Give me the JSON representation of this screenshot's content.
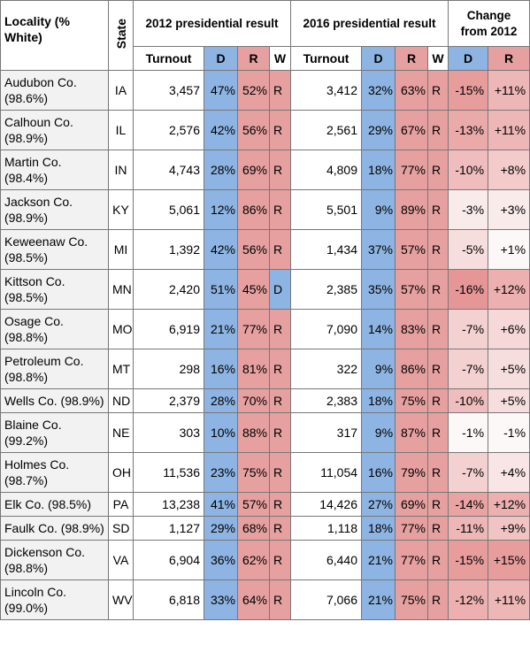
{
  "header": {
    "locality": "Locality (% White)",
    "state": "State",
    "group_2012": "2012 presidential result",
    "group_2016": "2016 presidential result",
    "group_change": "Change from 2012",
    "sub": [
      "Turnout",
      "D",
      "R",
      "W",
      "Turnout",
      "D",
      "R",
      "W",
      "D",
      "R"
    ]
  },
  "table": {
    "rows": [
      [
        "Audubon Co. (98.6%)",
        "IA",
        "3,457",
        "47%",
        "52%",
        "R",
        "3,412",
        "32%",
        "63%",
        "R",
        "-15%",
        "+11%"
      ],
      [
        "Calhoun Co. (98.9%)",
        "IL",
        "2,576",
        "42%",
        "56%",
        "R",
        "2,561",
        "29%",
        "67%",
        "R",
        "-13%",
        "+11%"
      ],
      [
        "Martin Co. (98.4%)",
        "IN",
        "4,743",
        "28%",
        "69%",
        "R",
        "4,809",
        "18%",
        "77%",
        "R",
        "-10%",
        "+8%"
      ],
      [
        "Jackson Co. (98.9%)",
        "KY",
        "5,061",
        "12%",
        "86%",
        "R",
        "5,501",
        "9%",
        "89%",
        "R",
        "-3%",
        "+3%"
      ],
      [
        "Keweenaw Co. (98.5%)",
        "MI",
        "1,392",
        "42%",
        "56%",
        "R",
        "1,434",
        "37%",
        "57%",
        "R",
        "-5%",
        "+1%"
      ],
      [
        "Kittson Co. (98.5%)",
        "MN",
        "2,420",
        "51%",
        "45%",
        "D",
        "2,385",
        "35%",
        "57%",
        "R",
        "-16%",
        "+12%"
      ],
      [
        "Osage Co. (98.8%)",
        "MO",
        "6,919",
        "21%",
        "77%",
        "R",
        "7,090",
        "14%",
        "83%",
        "R",
        "-7%",
        "+6%"
      ],
      [
        "Petroleum Co. (98.8%)",
        "MT",
        "298",
        "16%",
        "81%",
        "R",
        "322",
        "9%",
        "86%",
        "R",
        "-7%",
        "+5%"
      ],
      [
        "Wells Co. (98.9%)",
        "ND",
        "2,379",
        "28%",
        "70%",
        "R",
        "2,383",
        "18%",
        "75%",
        "R",
        "-10%",
        "+5%"
      ],
      [
        "Blaine Co. (99.2%)",
        "NE",
        "303",
        "10%",
        "88%",
        "R",
        "317",
        "9%",
        "87%",
        "R",
        "-1%",
        "-1%"
      ],
      [
        "Holmes Co. (98.7%)",
        "OH",
        "11,536",
        "23%",
        "75%",
        "R",
        "11,054",
        "16%",
        "79%",
        "R",
        "-7%",
        "+4%"
      ],
      [
        "Elk Co. (98.5%)",
        "PA",
        "13,238",
        "41%",
        "57%",
        "R",
        "14,426",
        "27%",
        "69%",
        "R",
        "-14%",
        "+12%"
      ],
      [
        "Faulk Co. (98.9%)",
        "SD",
        "1,127",
        "29%",
        "68%",
        "R",
        "1,118",
        "18%",
        "77%",
        "R",
        "-11%",
        "+9%"
      ],
      [
        "Dickenson Co. (98.8%)",
        "VA",
        "6,904",
        "36%",
        "62%",
        "R",
        "6,440",
        "21%",
        "77%",
        "R",
        "-15%",
        "+15%"
      ],
      [
        "Lincoln Co. (99.0%)",
        "WV",
        "6,818",
        "33%",
        "64%",
        "R",
        "7,066",
        "21%",
        "75%",
        "R",
        "-12%",
        "+11%"
      ]
    ]
  }
}
